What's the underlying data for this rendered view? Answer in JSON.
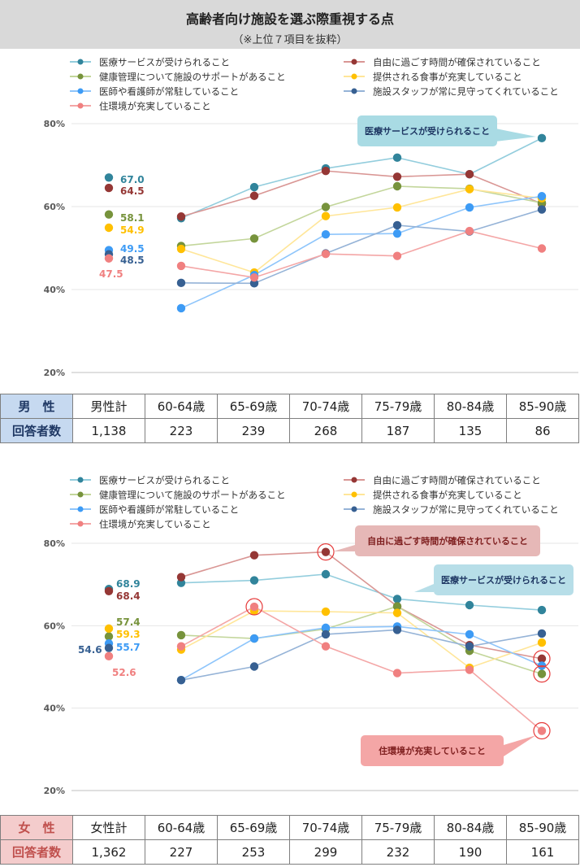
{
  "title": "高齢者向け施設を選ぶ際重視する点",
  "subtitle": "（※上位７項目を抜粋）",
  "chart_data": [
    {
      "type": "line",
      "categories": [
        "男性計",
        "60-64歳",
        "65-69歳",
        "70-74歳",
        "75-79歳",
        "80-84歳",
        "85-90歳"
      ],
      "ylim": [
        20,
        80
      ],
      "yticks": [
        "80%",
        "60%",
        "40%",
        "20%"
      ],
      "series": [
        {
          "name": "医療サービスが受けられること",
          "color": "#31849b",
          "line": "#93cddd",
          "values": [
            67.0,
            57.2,
            64.7,
            69.2,
            71.8,
            67.8,
            76.5
          ]
        },
        {
          "name": "自由に過ごす時間が確保されていること",
          "color": "#953735",
          "line": "#d99694",
          "values": [
            64.5,
            57.6,
            62.6,
            68.6,
            67.2,
            67.8,
            60.7
          ]
        },
        {
          "name": "健康管理について施設のサポートがあること",
          "color": "#77933c",
          "line": "#c3d69b",
          "values": [
            58.1,
            50.5,
            52.3,
            59.9,
            64.9,
            64.3,
            60.9
          ]
        },
        {
          "name": "提供される食事が充実していること",
          "color": "#ffc000",
          "line": "#ffe699",
          "values": [
            54.9,
            49.8,
            44.1,
            57.7,
            59.8,
            64.2,
            62.0
          ]
        },
        {
          "name": "医師や看護師が常駐していること",
          "color": "#3d9bf5",
          "line": "#8ec5fb",
          "values": [
            49.5,
            35.5,
            43.5,
            53.3,
            53.5,
            59.8,
            62.5
          ]
        },
        {
          "name": "施設スタッフが常に見守ってくれていること",
          "color": "#376092",
          "line": "#95b3d7",
          "values": [
            48.5,
            41.6,
            41.5,
            48.7,
            55.5,
            54.0,
            59.3
          ]
        },
        {
          "name": "住環境が充実していること",
          "color": "#f08080",
          "line": "#f4a6a6",
          "values": [
            47.5,
            45.7,
            42.9,
            48.6,
            48.1,
            54.1,
            49.9
          ]
        }
      ],
      "first_labels": [
        "67.0",
        "64.5",
        "58.1",
        "54.9",
        "49.5",
        "48.5",
        "47.5"
      ],
      "callouts": [
        {
          "text": "医療サービスが受けられること"
        }
      ],
      "table": {
        "sex": "男　性",
        "resp_label": "回答者数",
        "cols": [
          "男性計",
          "60-64歳",
          "65-69歳",
          "70-74歳",
          "75-79歳",
          "80-84歳",
          "85-90歳"
        ],
        "counts": [
          "1,138",
          "223",
          "239",
          "268",
          "187",
          "135",
          "86"
        ]
      }
    },
    {
      "type": "line",
      "categories": [
        "女性計",
        "60-64歳",
        "65-69歳",
        "70-74歳",
        "75-79歳",
        "80-84歳",
        "85-90歳"
      ],
      "ylim": [
        20,
        80
      ],
      "yticks": [
        "80%",
        "60%",
        "40%",
        "20%"
      ],
      "series": [
        {
          "name": "医療サービスが受けられること",
          "color": "#31849b",
          "line": "#93cddd",
          "values": [
            68.9,
            70.4,
            71.0,
            72.5,
            66.5,
            65.0,
            63.8
          ]
        },
        {
          "name": "自由に過ごす時間が確保されていること",
          "color": "#953735",
          "line": "#d99694",
          "values": [
            68.4,
            71.8,
            77.1,
            77.9,
            64.7,
            55.3,
            52.0
          ]
        },
        {
          "name": "健康管理について施設のサポートがあること",
          "color": "#77933c",
          "line": "#c3d69b",
          "values": [
            57.4,
            57.7,
            56.9,
            59.2,
            64.7,
            53.9,
            48.3
          ]
        },
        {
          "name": "提供される食事が充実していること",
          "color": "#ffc000",
          "line": "#ffe699",
          "values": [
            59.3,
            54.2,
            63.6,
            63.4,
            63.1,
            49.8,
            55.9
          ]
        },
        {
          "name": "医師や看護師が常駐していること",
          "color": "#3d9bf5",
          "line": "#8ec5fb",
          "values": [
            55.7,
            46.8,
            56.9,
            59.5,
            59.8,
            57.9,
            50.3
          ]
        },
        {
          "name": "施設スタッフが常に見守ってくれていること",
          "color": "#376092",
          "line": "#95b3d7",
          "values": [
            54.6,
            46.8,
            50.1,
            57.9,
            59.0,
            55.0,
            58.1
          ]
        },
        {
          "name": "住環境が充実していること",
          "color": "#f08080",
          "line": "#f4a6a6",
          "values": [
            52.6,
            55.0,
            64.6,
            55.0,
            48.5,
            49.3,
            34.5
          ]
        }
      ],
      "first_labels": [
        "68.9",
        "68.4",
        "57.4",
        "59.3",
        "55.7",
        "54.6",
        "52.6"
      ],
      "callouts": [
        {
          "text": "自由に過ごす時間が確保されていること"
        },
        {
          "text": "医療サービスが受けられること"
        },
        {
          "text": "住環境が充実していること"
        }
      ],
      "table": {
        "sex": "女　性",
        "resp_label": "回答者数",
        "cols": [
          "女性計",
          "60-64歳",
          "65-69歳",
          "70-74歳",
          "75-79歳",
          "80-84歳",
          "85-90歳"
        ],
        "counts": [
          "1,362",
          "227",
          "253",
          "299",
          "232",
          "190",
          "161"
        ]
      }
    }
  ]
}
